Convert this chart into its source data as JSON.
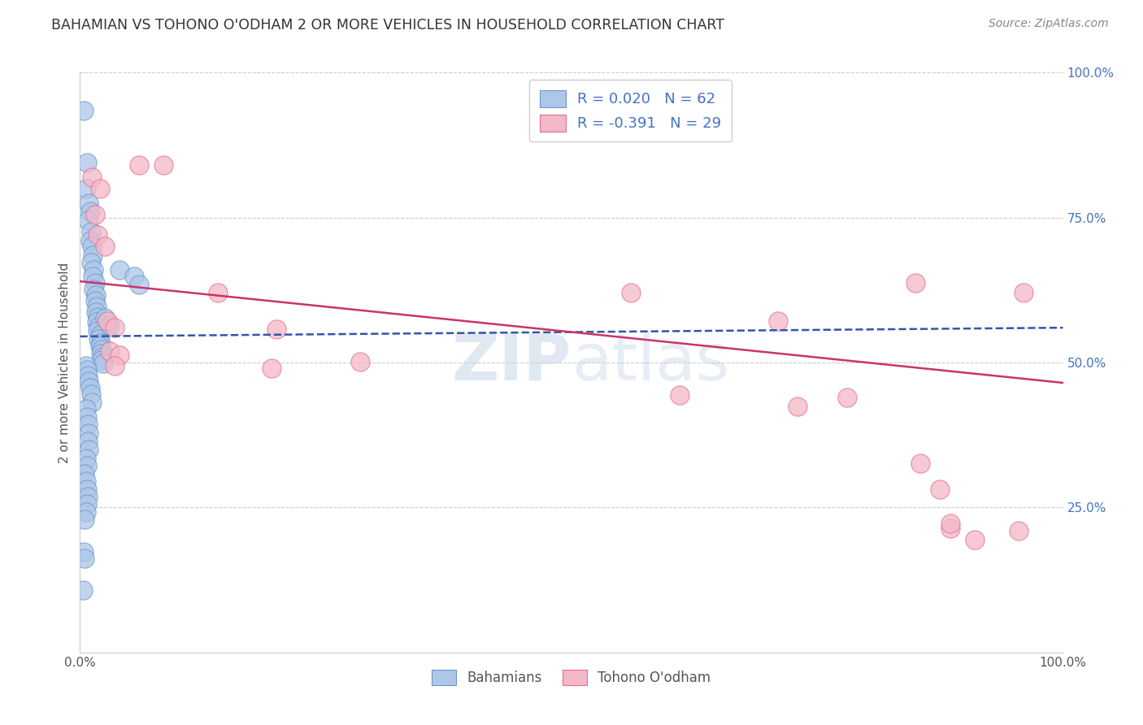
{
  "title": "BAHAMIAN VS TOHONO O'ODHAM 2 OR MORE VEHICLES IN HOUSEHOLD CORRELATION CHART",
  "source": "Source: ZipAtlas.com",
  "xlabel": "Bahamians",
  "ylabel": "2 or more Vehicles in Household",
  "watermark": "ZIPatlas",
  "xlim": [
    0.0,
    1.0
  ],
  "ylim": [
    0.0,
    1.0
  ],
  "bahamian_color": "#aec6e8",
  "tohono_color": "#f4b8c8",
  "bahamian_edge_color": "#6699cc",
  "tohono_edge_color": "#e07090",
  "bahamian_R": 0.02,
  "bahamian_N": 62,
  "tohono_R": -0.391,
  "tohono_N": 29,
  "bahamian_line_color": "#3355aa",
  "tohono_line_color": "#cc3366",
  "legend_text_color": "#4472C4",
  "background_color": "#ffffff",
  "grid_color": "#cccccc",
  "bahamian_scatter": [
    [
      0.004,
      0.935
    ],
    [
      0.007,
      0.845
    ],
    [
      0.006,
      0.8
    ],
    [
      0.009,
      0.775
    ],
    [
      0.01,
      0.76
    ],
    [
      0.008,
      0.745
    ],
    [
      0.011,
      0.725
    ],
    [
      0.01,
      0.71
    ],
    [
      0.012,
      0.7
    ],
    [
      0.013,
      0.685
    ],
    [
      0.011,
      0.672
    ],
    [
      0.014,
      0.66
    ],
    [
      0.013,
      0.648
    ],
    [
      0.015,
      0.637
    ],
    [
      0.014,
      0.626
    ],
    [
      0.016,
      0.616
    ],
    [
      0.015,
      0.606
    ],
    [
      0.017,
      0.596
    ],
    [
      0.016,
      0.587
    ],
    [
      0.018,
      0.578
    ],
    [
      0.017,
      0.57
    ],
    [
      0.019,
      0.562
    ],
    [
      0.018,
      0.555
    ],
    [
      0.02,
      0.548
    ],
    [
      0.019,
      0.541
    ],
    [
      0.021,
      0.534
    ],
    [
      0.02,
      0.528
    ],
    [
      0.022,
      0.522
    ],
    [
      0.021,
      0.516
    ],
    [
      0.023,
      0.51
    ],
    [
      0.022,
      0.504
    ],
    [
      0.024,
      0.499
    ],
    [
      0.006,
      0.494
    ],
    [
      0.007,
      0.487
    ],
    [
      0.008,
      0.478
    ],
    [
      0.009,
      0.468
    ],
    [
      0.01,
      0.457
    ],
    [
      0.011,
      0.445
    ],
    [
      0.012,
      0.432
    ],
    [
      0.006,
      0.42
    ],
    [
      0.007,
      0.406
    ],
    [
      0.008,
      0.393
    ],
    [
      0.009,
      0.378
    ],
    [
      0.008,
      0.364
    ],
    [
      0.009,
      0.35
    ],
    [
      0.006,
      0.335
    ],
    [
      0.007,
      0.322
    ],
    [
      0.005,
      0.308
    ],
    [
      0.006,
      0.295
    ],
    [
      0.007,
      0.282
    ],
    [
      0.008,
      0.269
    ],
    [
      0.007,
      0.256
    ],
    [
      0.006,
      0.242
    ],
    [
      0.005,
      0.229
    ],
    [
      0.004,
      0.174
    ],
    [
      0.005,
      0.162
    ],
    [
      0.003,
      0.108
    ],
    [
      0.04,
      0.66
    ],
    [
      0.055,
      0.648
    ],
    [
      0.06,
      0.635
    ],
    [
      0.025,
      0.577
    ],
    [
      0.03,
      0.564
    ]
  ],
  "tohono_scatter": [
    [
      0.012,
      0.82
    ],
    [
      0.02,
      0.8
    ],
    [
      0.015,
      0.755
    ],
    [
      0.06,
      0.84
    ],
    [
      0.085,
      0.84
    ],
    [
      0.018,
      0.72
    ],
    [
      0.025,
      0.7
    ],
    [
      0.14,
      0.62
    ],
    [
      0.2,
      0.558
    ],
    [
      0.028,
      0.572
    ],
    [
      0.035,
      0.56
    ],
    [
      0.03,
      0.52
    ],
    [
      0.04,
      0.512
    ],
    [
      0.035,
      0.495
    ],
    [
      0.195,
      0.49
    ],
    [
      0.285,
      0.502
    ],
    [
      0.56,
      0.62
    ],
    [
      0.71,
      0.572
    ],
    [
      0.85,
      0.638
    ],
    [
      0.96,
      0.62
    ],
    [
      0.61,
      0.444
    ],
    [
      0.73,
      0.424
    ],
    [
      0.78,
      0.44
    ],
    [
      0.855,
      0.326
    ],
    [
      0.875,
      0.282
    ],
    [
      0.885,
      0.214
    ],
    [
      0.91,
      0.195
    ],
    [
      0.885,
      0.222
    ],
    [
      0.955,
      0.21
    ]
  ],
  "bahamian_trendline": [
    [
      0.0,
      0.545
    ],
    [
      1.0,
      0.56
    ]
  ],
  "tohono_trendline": [
    [
      0.0,
      0.64
    ],
    [
      1.0,
      0.465
    ]
  ]
}
